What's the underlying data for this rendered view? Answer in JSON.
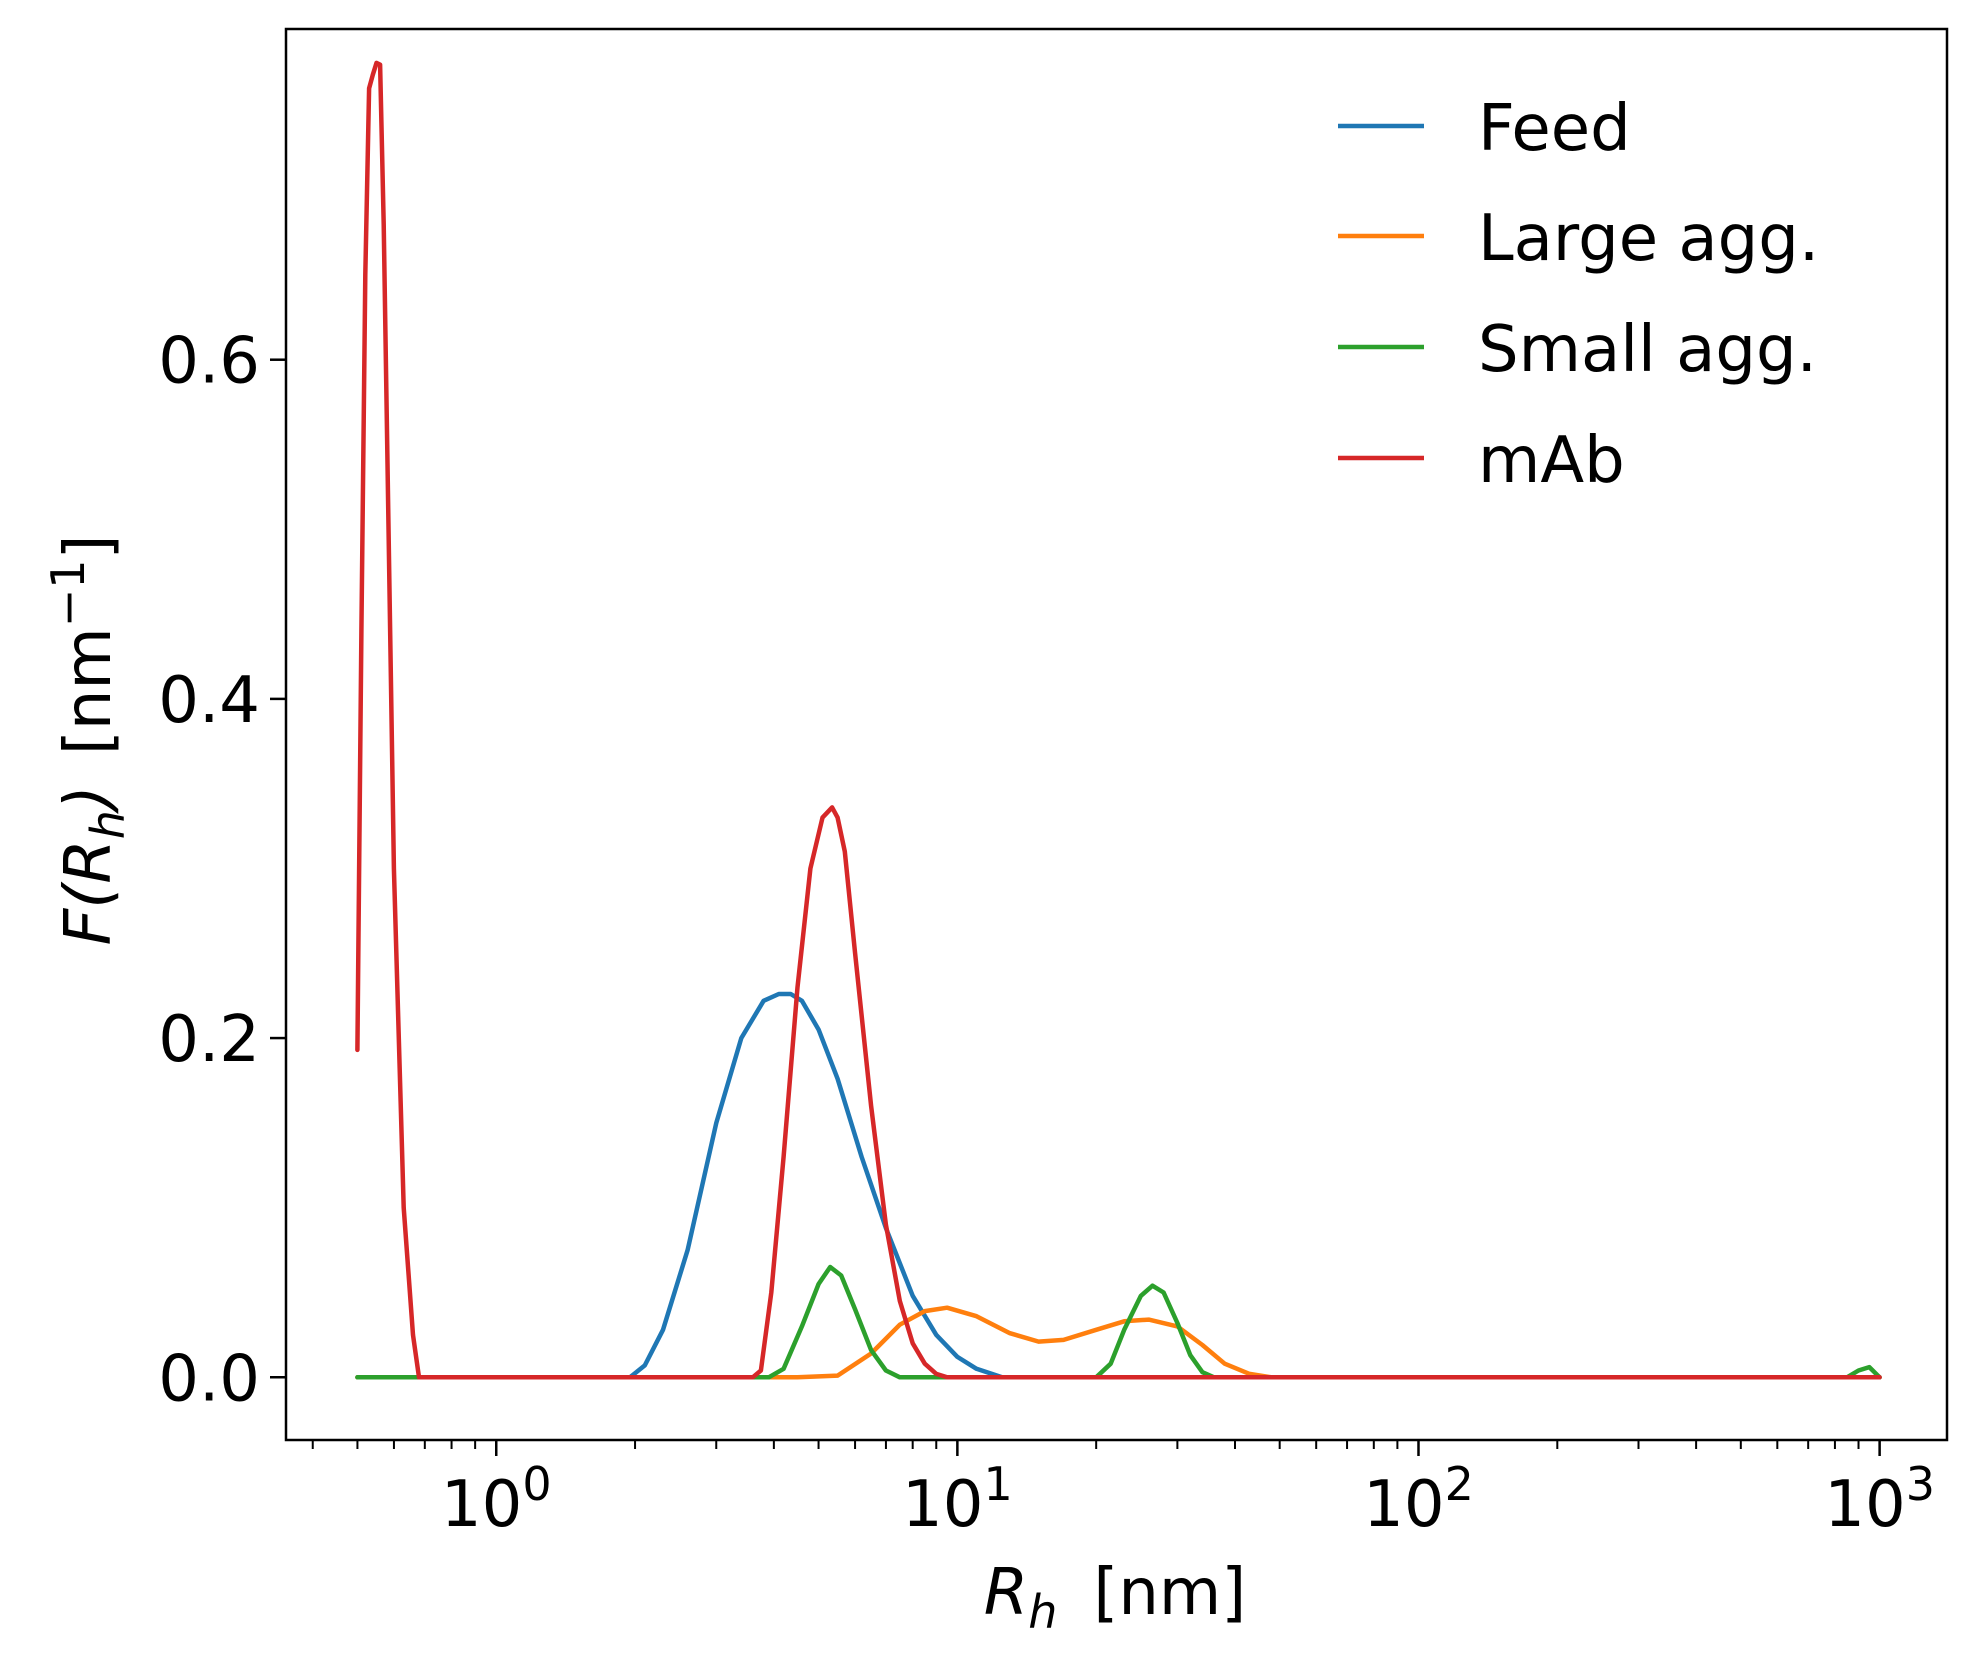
{
  "chart_data": {
    "type": "line",
    "xlabel": {
      "main": "R",
      "sub": "h",
      "unit": "[nm]"
    },
    "ylabel": {
      "prefix": "F(",
      "main": "R",
      "sub": "h",
      "suffix": ")",
      "unit_open": "[nm",
      "unit_exp": "−1",
      "unit_close": "]"
    },
    "xscale": "log",
    "xlim": [
      0.35,
      1400
    ],
    "ylim": [
      -0.037,
      0.795
    ],
    "x_ticks": [
      {
        "value": 1,
        "base": "10",
        "exp": "0"
      },
      {
        "value": 10,
        "base": "10",
        "exp": "1"
      },
      {
        "value": 100,
        "base": "10",
        "exp": "2"
      },
      {
        "value": 1000,
        "base": "10",
        "exp": "3"
      }
    ],
    "y_ticks": [
      {
        "value": 0.0,
        "label": "0.0"
      },
      {
        "value": 0.2,
        "label": "0.2"
      },
      {
        "value": 0.4,
        "label": "0.4"
      },
      {
        "value": 0.6,
        "label": "0.6"
      }
    ],
    "grid": false,
    "legend_position": "top-right",
    "series": [
      {
        "name": "Feed",
        "color": "#1f77b4",
        "x": [
          0.5,
          1.0,
          1.95,
          2.1,
          2.3,
          2.6,
          3.0,
          3.4,
          3.8,
          4.1,
          4.35,
          4.6,
          5.0,
          5.5,
          6.2,
          7.0,
          8.0,
          9.0,
          10.0,
          11.0,
          12.5,
          14.0,
          1000
        ],
        "y": [
          0.0,
          0.0,
          0.0,
          0.007,
          0.028,
          0.075,
          0.15,
          0.2,
          0.222,
          0.226,
          0.226,
          0.222,
          0.205,
          0.176,
          0.13,
          0.088,
          0.048,
          0.025,
          0.012,
          0.005,
          0.0,
          0.0,
          0.0
        ]
      },
      {
        "name": "Large agg.",
        "color": "#ff7f0e",
        "x": [
          0.5,
          4.5,
          5.5,
          6.5,
          7.5,
          8.5,
          9.5,
          11,
          13,
          15,
          17,
          20,
          23,
          26,
          30,
          34,
          38,
          43,
          48,
          55,
          1000
        ],
        "y": [
          0.0,
          0.0,
          0.001,
          0.014,
          0.031,
          0.039,
          0.041,
          0.036,
          0.026,
          0.021,
          0.022,
          0.028,
          0.033,
          0.034,
          0.03,
          0.019,
          0.008,
          0.002,
          0.0,
          0.0,
          0.0
        ]
      },
      {
        "name": "Small agg.",
        "color": "#2ca02c",
        "x": [
          0.5,
          3.9,
          4.2,
          4.6,
          5.0,
          5.3,
          5.6,
          6.0,
          6.5,
          7.0,
          7.5,
          20,
          21.5,
          23,
          25,
          26.5,
          28,
          30,
          32,
          34,
          36,
          850,
          900,
          950,
          1000
        ],
        "y": [
          0.0,
          0.0,
          0.005,
          0.03,
          0.055,
          0.065,
          0.06,
          0.04,
          0.016,
          0.004,
          0.0,
          0.0,
          0.008,
          0.028,
          0.048,
          0.054,
          0.05,
          0.032,
          0.013,
          0.003,
          0.0,
          0.0,
          0.004,
          0.006,
          0.0
        ]
      },
      {
        "name": "mAb",
        "color": "#d62728",
        "x": [
          0.5,
          0.51,
          0.52,
          0.53,
          0.54,
          0.55,
          0.56,
          0.57,
          0.58,
          0.6,
          0.63,
          0.66,
          0.68,
          0.7,
          1.0,
          3.6,
          3.75,
          3.95,
          4.2,
          4.5,
          4.8,
          5.1,
          5.35,
          5.5,
          5.7,
          6.0,
          6.5,
          7.0,
          7.5,
          8.0,
          8.5,
          9.0,
          9.5,
          1000
        ],
        "y": [
          0.193,
          0.44,
          0.65,
          0.76,
          0.768,
          0.775,
          0.774,
          0.68,
          0.55,
          0.3,
          0.1,
          0.025,
          0.0,
          0.0,
          0.0,
          0.0,
          0.004,
          0.05,
          0.13,
          0.23,
          0.3,
          0.33,
          0.336,
          0.33,
          0.31,
          0.25,
          0.16,
          0.09,
          0.045,
          0.02,
          0.008,
          0.002,
          0.0,
          0.0
        ]
      }
    ]
  }
}
